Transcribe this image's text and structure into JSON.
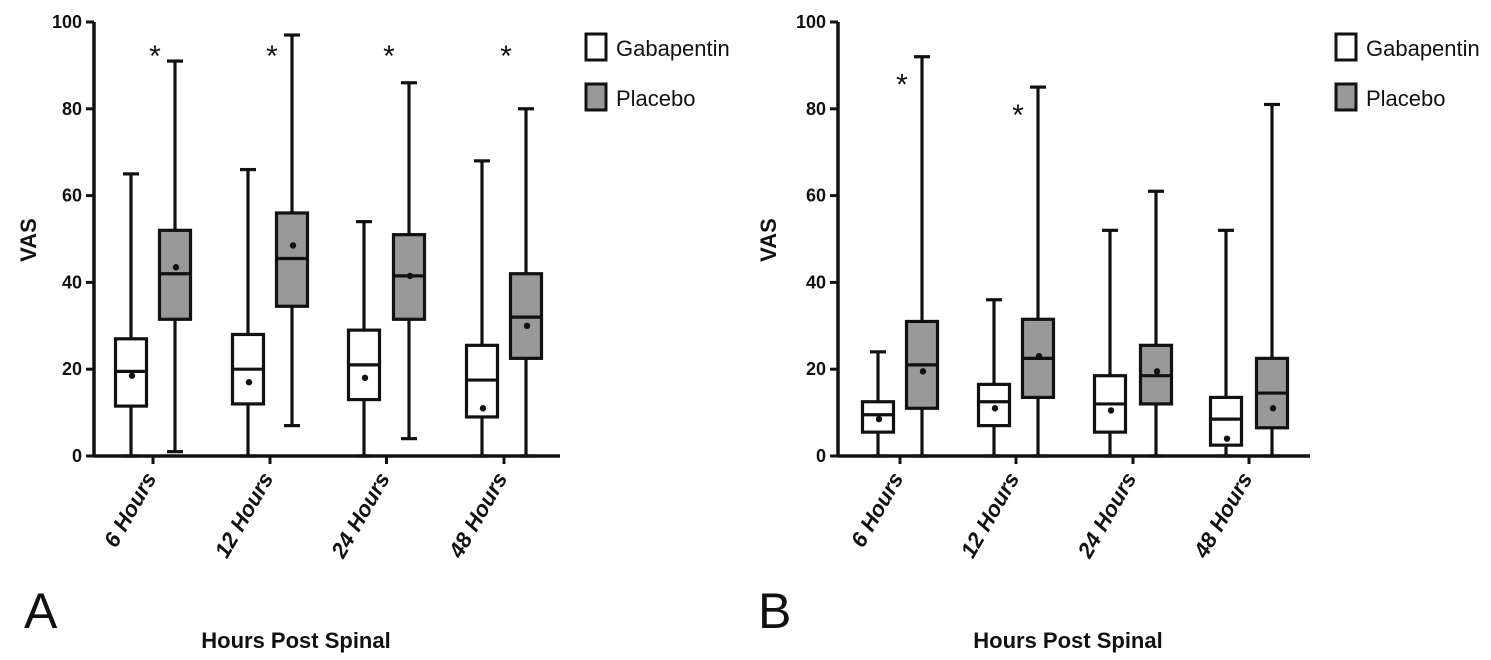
{
  "chart_data": [
    {
      "type": "box",
      "panel_label": "A",
      "ylabel": "VAS",
      "xlabel": "Hours Post Spinal",
      "ylim": [
        0,
        100
      ],
      "yticks": [
        "0",
        "20",
        "40",
        "60",
        "80",
        "100"
      ],
      "categories": [
        "6 Hours",
        "12 Hours",
        "24 Hours",
        "48 Hours"
      ],
      "legend": {
        "placement": "top-right",
        "entries": [
          "Gabapentin",
          "Placebo"
        ]
      },
      "significance": [
        "*",
        "*",
        "*",
        "*"
      ],
      "series": [
        {
          "name": "Gabapentin",
          "color": "#ffffff",
          "boxes": [
            {
              "min": 0,
              "q1": 11.5,
              "median": 19.5,
              "q3": 27,
              "max": 65,
              "mean": 18.5
            },
            {
              "min": 0,
              "q1": 12,
              "median": 20,
              "q3": 28,
              "max": 66,
              "mean": 17
            },
            {
              "min": 0,
              "q1": 13,
              "median": 21,
              "q3": 29,
              "max": 54,
              "mean": 18
            },
            {
              "min": 0,
              "q1": 9,
              "median": 17.5,
              "q3": 25.5,
              "max": 68,
              "mean": 11
            }
          ]
        },
        {
          "name": "Placebo",
          "color": "#999999",
          "boxes": [
            {
              "min": 1,
              "q1": 31.5,
              "median": 42,
              "q3": 52,
              "max": 91,
              "mean": 43.5
            },
            {
              "min": 7,
              "q1": 34.5,
              "median": 45.5,
              "q3": 56,
              "max": 97,
              "mean": 48.5
            },
            {
              "min": 4,
              "q1": 31.5,
              "median": 41.5,
              "q3": 51,
              "max": 86,
              "mean": 41.5
            },
            {
              "min": 0,
              "q1": 22.5,
              "median": 32,
              "q3": 42,
              "max": 80,
              "mean": 30
            }
          ]
        }
      ]
    },
    {
      "type": "box",
      "panel_label": "B",
      "ylabel": "VAS",
      "xlabel": "Hours Post Spinal",
      "ylim": [
        0,
        100
      ],
      "yticks": [
        "0",
        "20",
        "40",
        "60",
        "80",
        "100"
      ],
      "categories": [
        "6 Hours",
        "12 Hours",
        "24 Hours",
        "48 Hours"
      ],
      "legend": {
        "placement": "top-right",
        "entries": [
          "Gabapentin",
          "Placebo"
        ]
      },
      "significance": [
        "*",
        "*",
        "",
        ""
      ],
      "series": [
        {
          "name": "Gabapentin",
          "color": "#ffffff",
          "boxes": [
            {
              "min": 0,
              "q1": 5.5,
              "median": 9.5,
              "q3": 12.5,
              "max": 24,
              "mean": 8.5
            },
            {
              "min": 0,
              "q1": 7,
              "median": 12.5,
              "q3": 16.5,
              "max": 36,
              "mean": 11
            },
            {
              "min": 0,
              "q1": 5.5,
              "median": 12,
              "q3": 18.5,
              "max": 52,
              "mean": 10.5
            },
            {
              "min": 0,
              "q1": 2.5,
              "median": 8.5,
              "q3": 13.5,
              "max": 52,
              "mean": 4
            }
          ]
        },
        {
          "name": "Placebo",
          "color": "#999999",
          "boxes": [
            {
              "min": 0,
              "q1": 11,
              "median": 21,
              "q3": 31,
              "max": 92,
              "mean": 19.5
            },
            {
              "min": 0,
              "q1": 13.5,
              "median": 22.5,
              "q3": 31.5,
              "max": 85,
              "mean": 23
            },
            {
              "min": 0,
              "q1": 12,
              "median": 18.5,
              "q3": 25.5,
              "max": 61,
              "mean": 19.5
            },
            {
              "min": 0,
              "q1": 6.5,
              "median": 14.5,
              "q3": 22.5,
              "max": 81,
              "mean": 11
            }
          ]
        }
      ]
    }
  ]
}
